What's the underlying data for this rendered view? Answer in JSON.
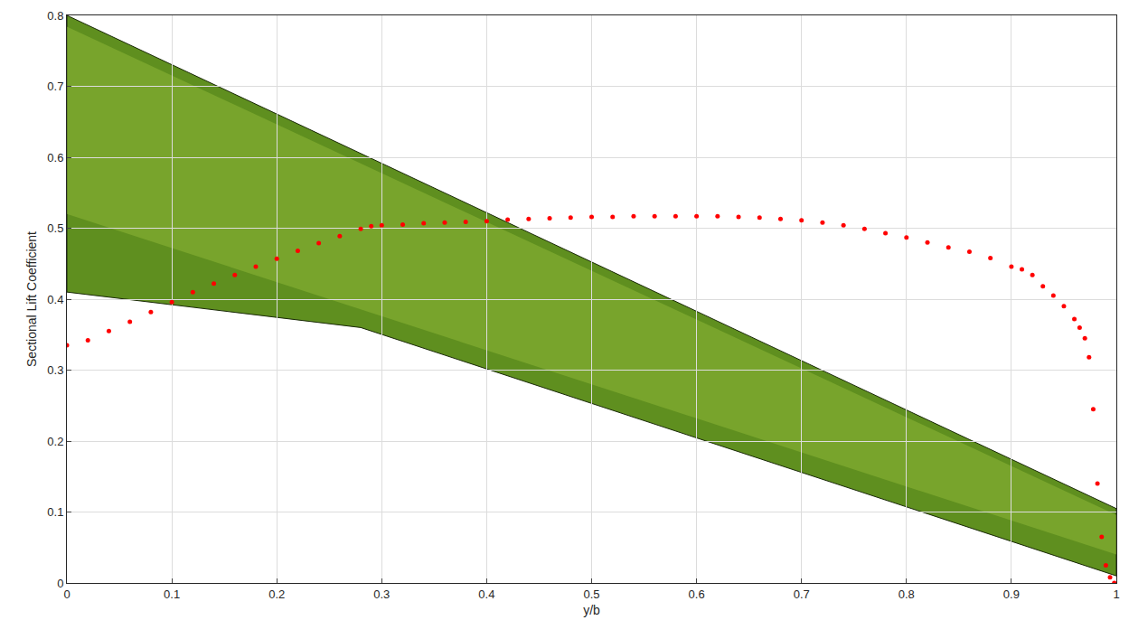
{
  "chart_data": {
    "type": "scatter",
    "marker": "circle",
    "color": "#ff0000",
    "xlabel": "y/b",
    "ylabel": "Sectional Lift Coefficient",
    "x": [
      0,
      0.02,
      0.04,
      0.06,
      0.08,
      0.1,
      0.12,
      0.14,
      0.16,
      0.18,
      0.2,
      0.22,
      0.24,
      0.26,
      0.28,
      0.29,
      0.3,
      0.32,
      0.34,
      0.36,
      0.38,
      0.4,
      0.42,
      0.44,
      0.46,
      0.48,
      0.5,
      0.52,
      0.54,
      0.56,
      0.58,
      0.6,
      0.62,
      0.64,
      0.66,
      0.68,
      0.7,
      0.72,
      0.74,
      0.76,
      0.78,
      0.8,
      0.82,
      0.84,
      0.86,
      0.88,
      0.9,
      0.91,
      0.92,
      0.93,
      0.94,
      0.95,
      0.96,
      0.965,
      0.97,
      0.974,
      0.978,
      0.982,
      0.986,
      0.99,
      0.994,
      0.998
    ],
    "values": [
      0.335,
      0.342,
      0.355,
      0.368,
      0.382,
      0.396,
      0.41,
      0.422,
      0.434,
      0.446,
      0.457,
      0.468,
      0.479,
      0.489,
      0.499,
      0.503,
      0.504,
      0.505,
      0.507,
      0.508,
      0.509,
      0.51,
      0.512,
      0.513,
      0.514,
      0.515,
      0.516,
      0.516,
      0.517,
      0.517,
      0.517,
      0.517,
      0.517,
      0.516,
      0.515,
      0.513,
      0.511,
      0.508,
      0.504,
      0.499,
      0.493,
      0.487,
      0.48,
      0.473,
      0.467,
      0.458,
      0.446,
      0.442,
      0.434,
      0.418,
      0.405,
      0.39,
      0.372,
      0.36,
      0.345,
      0.318,
      0.245,
      0.14,
      0.065,
      0.025,
      0.008,
      0
    ],
    "xlim": [
      0,
      1
    ],
    "xticks": [
      0,
      0.1,
      0.2,
      0.3,
      0.4,
      0.5,
      0.6,
      0.7,
      0.8,
      0.9,
      1
    ],
    "ylim": [
      0,
      0.8
    ],
    "yticks": [
      0,
      0.1,
      0.2,
      0.3,
      0.4,
      0.5,
      0.6,
      0.7,
      0.8
    ],
    "grid": true
  }
}
